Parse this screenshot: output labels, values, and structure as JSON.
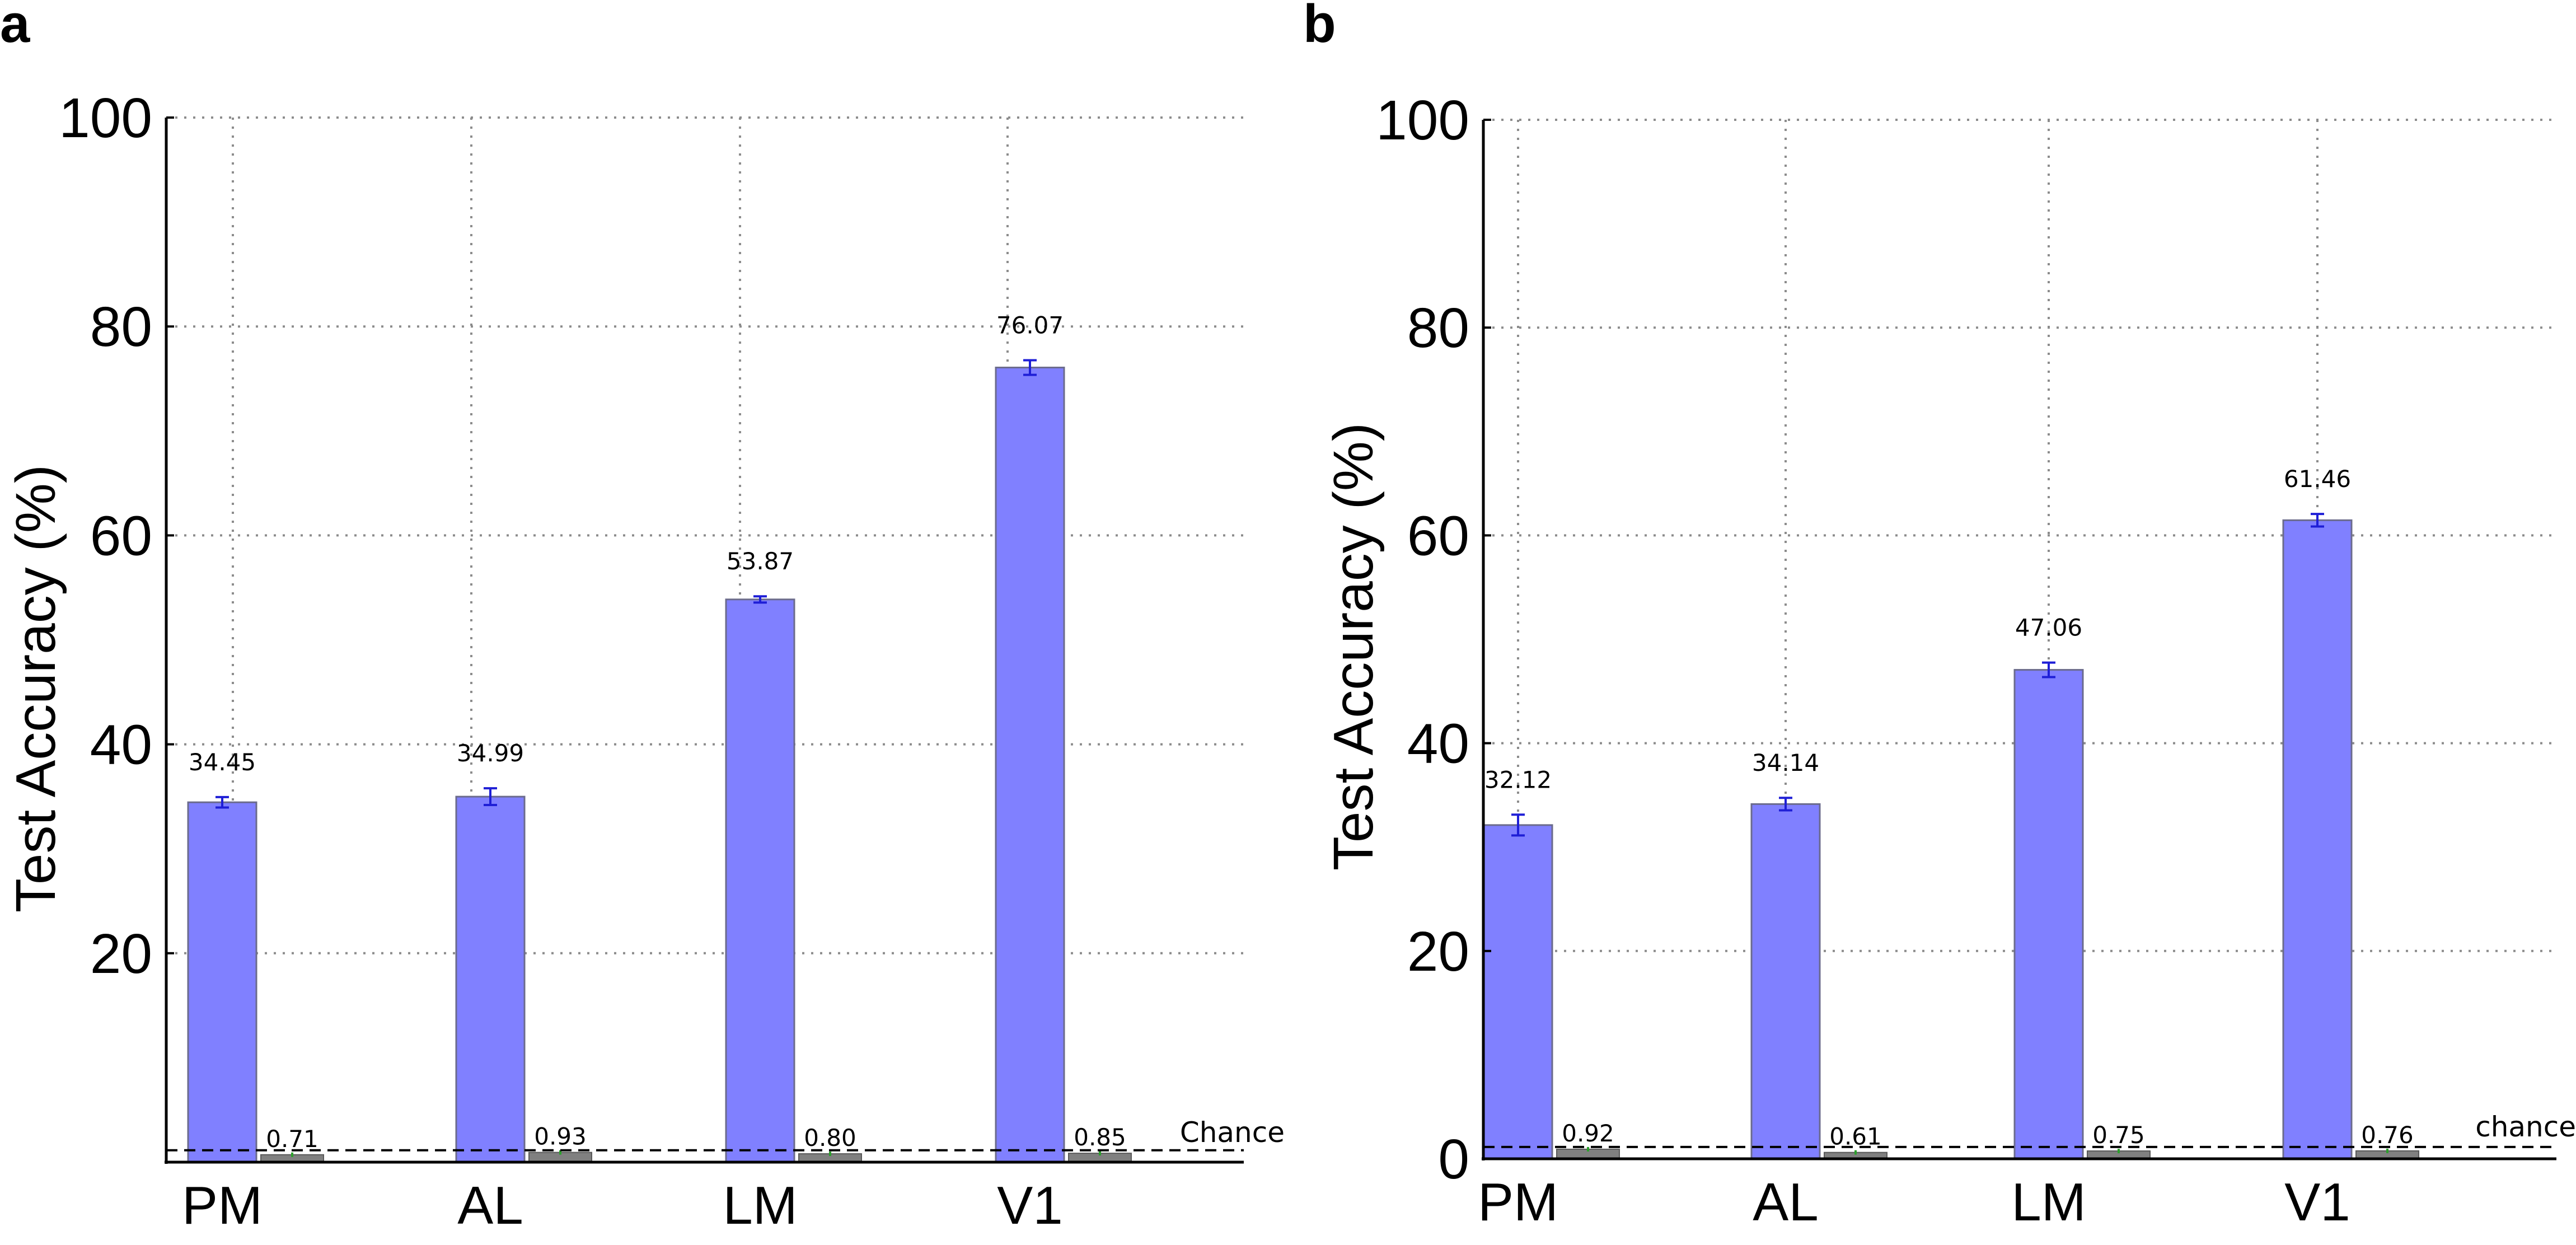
{
  "chart_data": [
    {
      "panel": "a",
      "type": "bar",
      "ylabel": "Test Accuracy (%)",
      "ylim": [
        0,
        100
      ],
      "yticks": [
        20,
        40,
        60,
        80,
        100
      ],
      "categories": [
        "PM",
        "AL",
        "LM",
        "V1"
      ],
      "series": [
        {
          "values": [
            34.45,
            34.99,
            53.87,
            76.07
          ],
          "errors": [
            0.5,
            0.8,
            0.3,
            0.7
          ],
          "color": "#8080ff"
        },
        {
          "values": [
            0.71,
            0.93,
            0.8,
            0.85
          ],
          "color": "#808080"
        }
      ],
      "value_labels": {
        "main": [
          "34.45",
          "34.99",
          "53.87",
          "76.07"
        ],
        "shuffled": [
          "0.71",
          "0.93",
          "0.80",
          "0.85"
        ]
      },
      "chance": {
        "value": 0.6,
        "label": "Chance"
      },
      "grid": true
    },
    {
      "panel": "b",
      "type": "bar",
      "ylabel": "Test Accuracy (%)",
      "ylim": [
        0,
        100
      ],
      "yticks": [
        0,
        20,
        40,
        60,
        80,
        100
      ],
      "categories": [
        "PM",
        "AL",
        "LM",
        "V1"
      ],
      "series": [
        {
          "values": [
            32.12,
            34.14,
            47.06,
            61.46
          ],
          "errors": [
            1.0,
            0.6,
            0.7,
            0.6
          ],
          "color": "#8080ff"
        },
        {
          "values": [
            0.92,
            0.61,
            0.75,
            0.76
          ],
          "color": "#808080"
        }
      ],
      "value_labels": {
        "main": [
          "32.12",
          "34.14",
          "47.06",
          "61.46"
        ],
        "shuffled": [
          "0.92",
          "0.61",
          "0.75",
          "0.76"
        ]
      },
      "chance": {
        "value": 0.6,
        "label": "chance"
      },
      "grid": true
    }
  ]
}
